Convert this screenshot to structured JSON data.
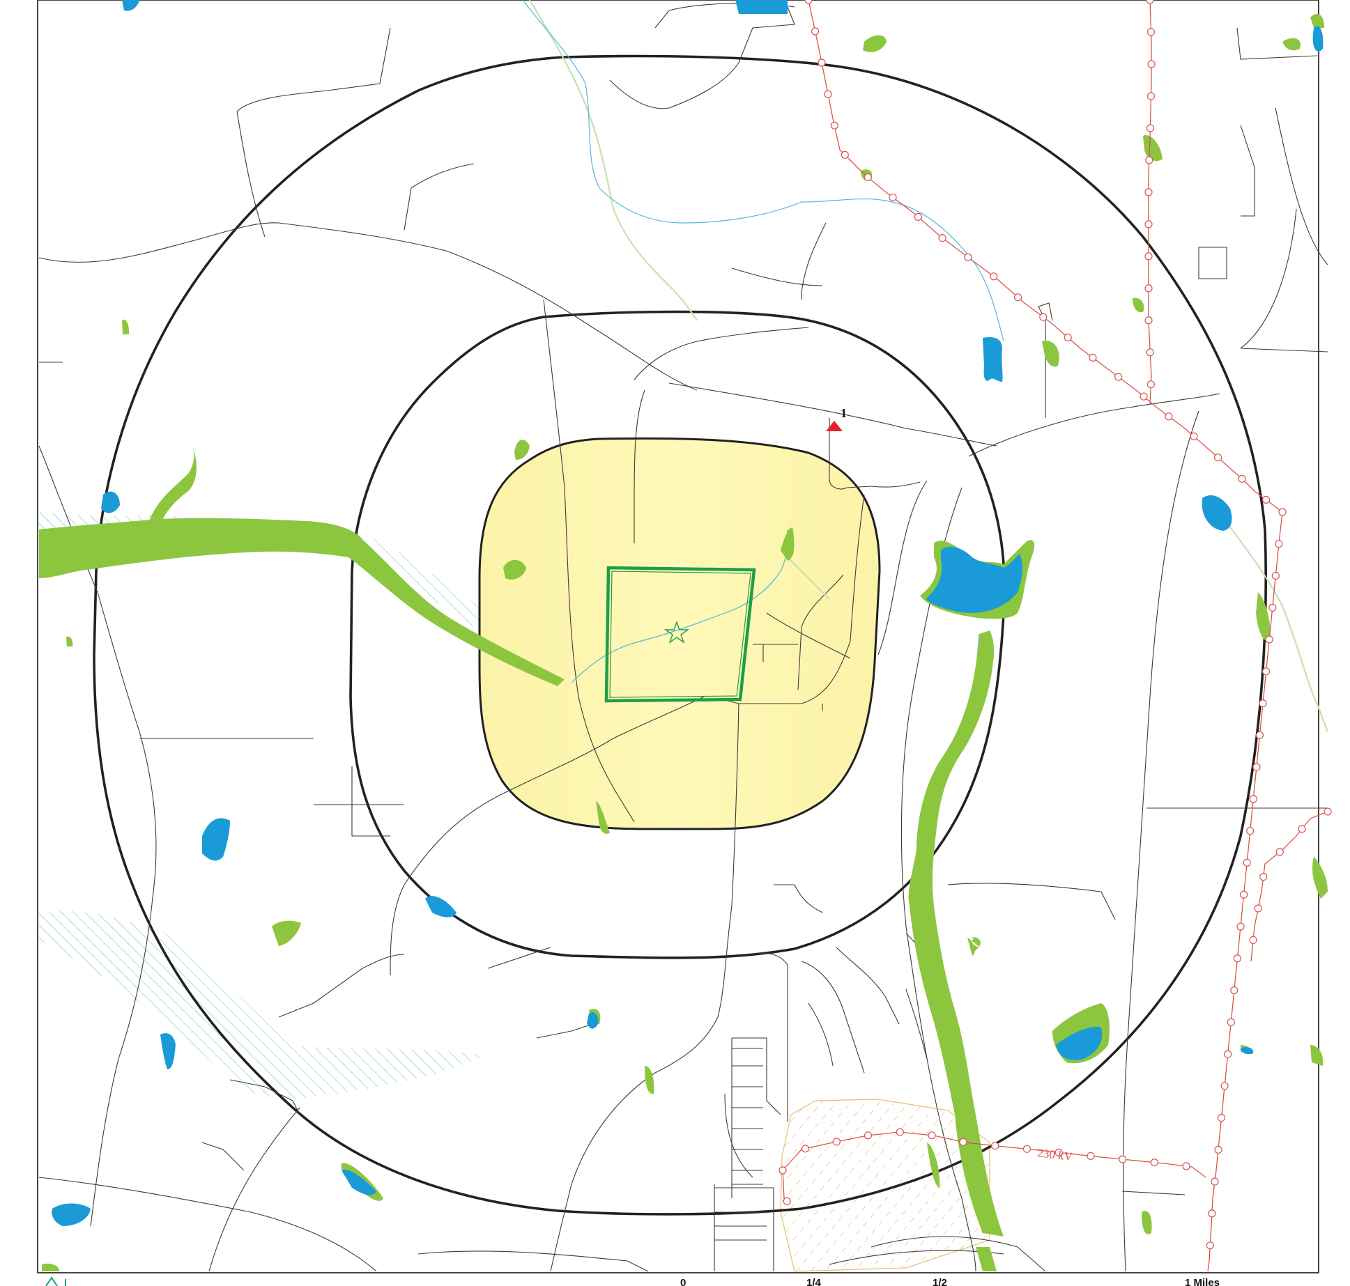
{
  "map": {
    "features": {
      "site_marker_label": "1",
      "powerline_label": "230 kV"
    },
    "scale_bar": {
      "ticks": [
        "0",
        "1/4",
        "1/2",
        "1 Miles"
      ]
    },
    "colors": {
      "buffer_fill": "#fdf6b4",
      "site_boundary": "#1f9e4a",
      "wetland": "#8cc63f",
      "water": "#1a9bd7",
      "powerline": "#d9534f",
      "marker": "#e8202a",
      "ring": "#222222"
    },
    "icons": [
      "site-star-icon",
      "red-triangle-marker-icon",
      "north-arrow-icon"
    ]
  }
}
